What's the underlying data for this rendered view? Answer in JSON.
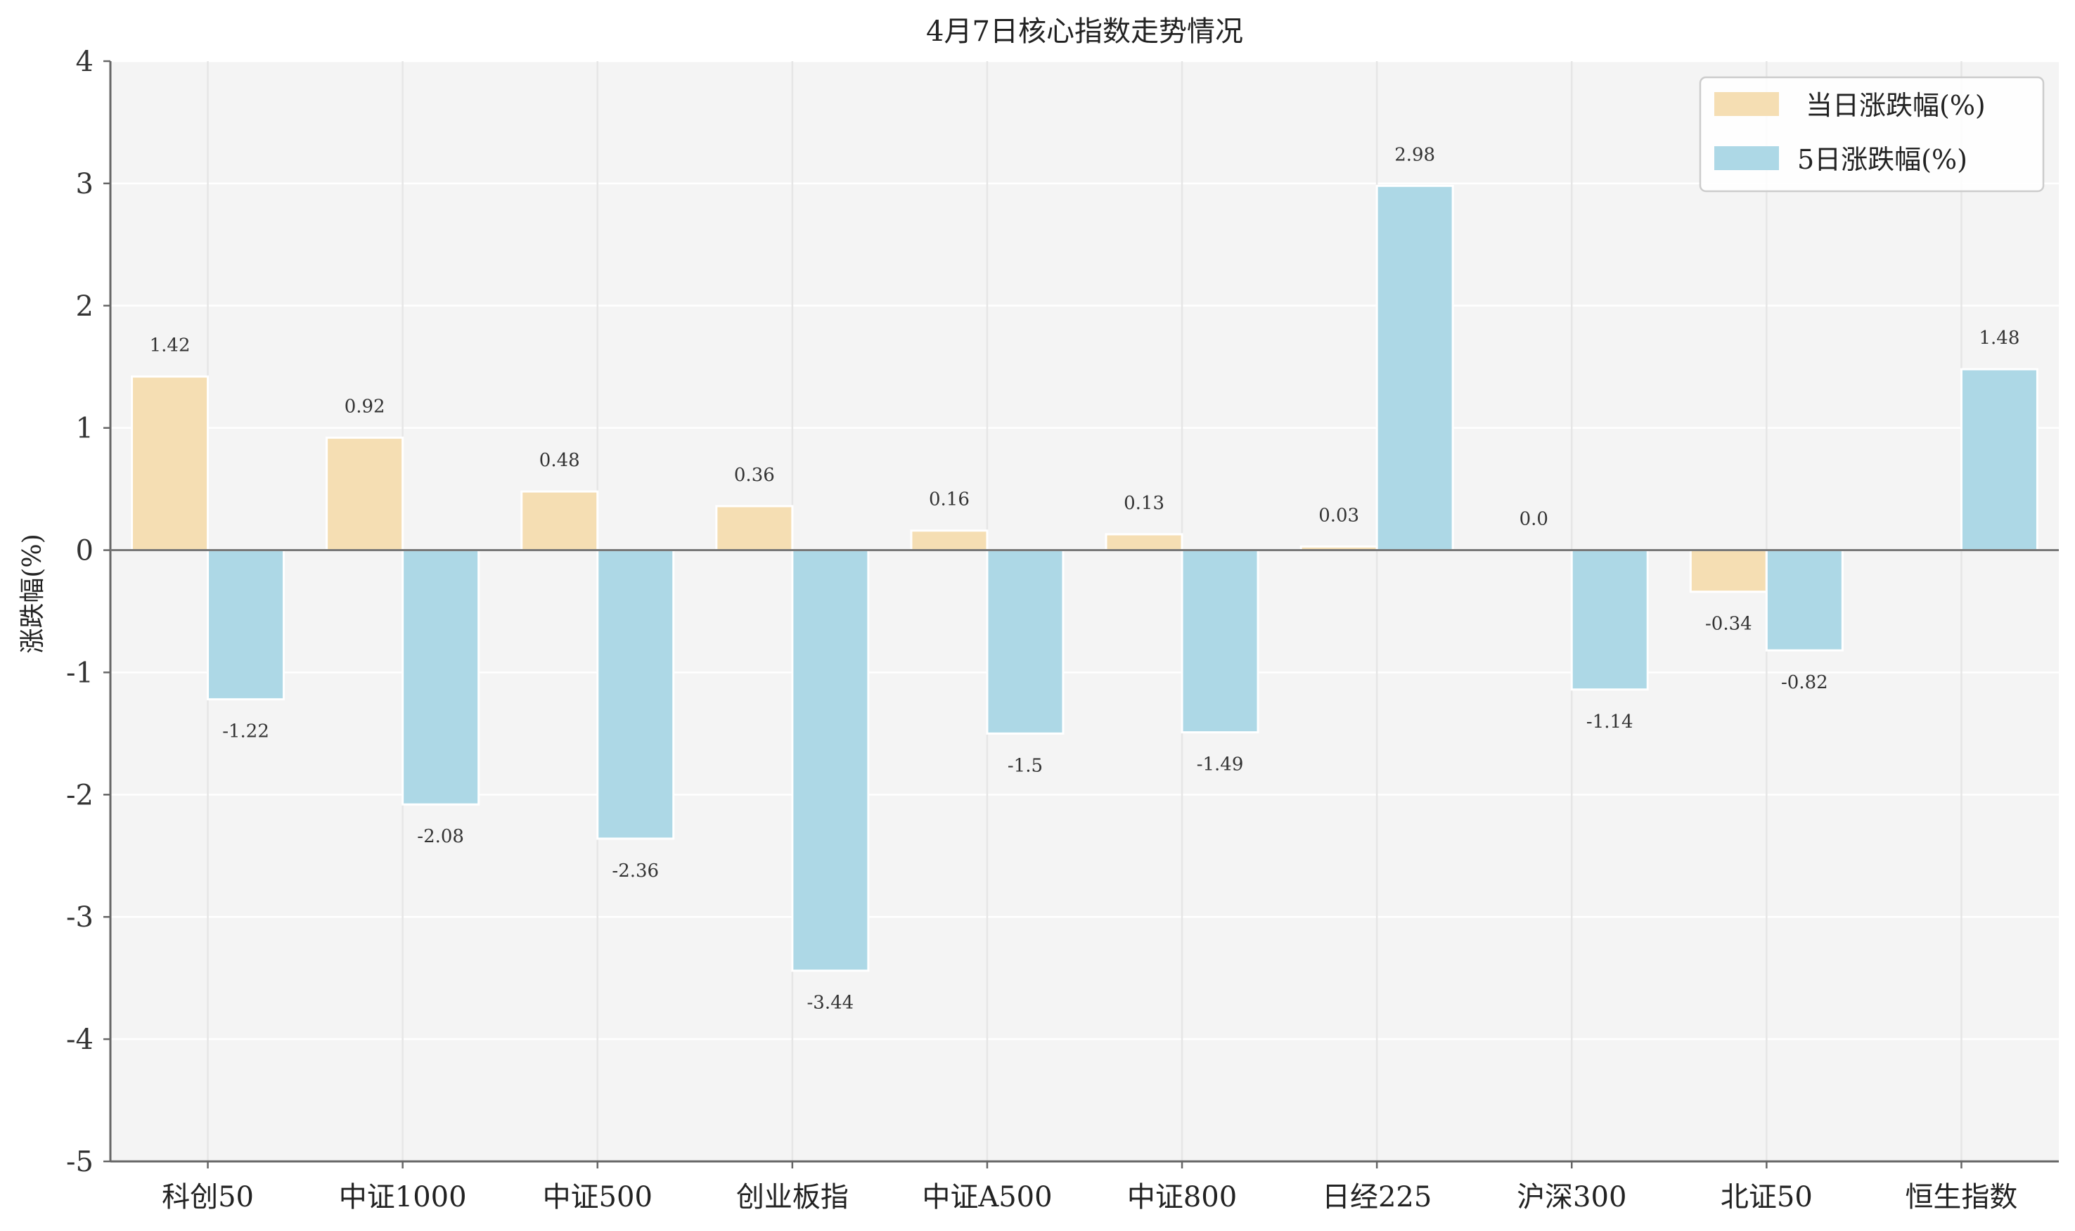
{
  "chart_data": {
    "type": "bar",
    "title": "4月7日核心指数走势情况",
    "xlabel": "",
    "ylabel": "涨跌幅(%)",
    "ylim": [
      -5,
      4
    ],
    "yticks": [
      "4",
      "3",
      "2",
      "1",
      "0",
      "-1",
      "-2",
      "-3",
      "-4",
      "-5"
    ],
    "grid": true,
    "legend_position": "top-right",
    "categories": [
      "科创50",
      "中证1000",
      "中证500",
      "创业板指",
      "中证A500",
      "中证800",
      "日经225",
      "沪深300",
      "北证50",
      "恒生指数"
    ],
    "series": [
      {
        "name": "当日涨跌幅(%)",
        "color": "#f5deb3",
        "values": [
          1.42,
          0.92,
          0.48,
          0.36,
          0.16,
          0.13,
          0.03,
          0.0,
          -0.34,
          null
        ],
        "labels": [
          "1.42",
          "0.92",
          "0.48",
          "0.36",
          "0.16",
          "0.13",
          "0.03",
          "0.0",
          "-0.34",
          ""
        ]
      },
      {
        "name": "5日涨跌幅(%)",
        "color": "#add8e6",
        "values": [
          -1.22,
          -2.08,
          -2.36,
          -3.44,
          -1.5,
          -1.49,
          2.98,
          -1.14,
          -0.82,
          1.48
        ],
        "labels": [
          "-1.22",
          "-2.08",
          "-2.36",
          "-3.44",
          "-1.5",
          "-1.49",
          "2.98",
          "-1.14",
          "-0.82",
          "1.48"
        ]
      }
    ]
  },
  "colors": {
    "plot_background": "#f4f4f4",
    "grid": "#e6e6e6",
    "axis": "#666666",
    "zero_line": "#777777"
  }
}
